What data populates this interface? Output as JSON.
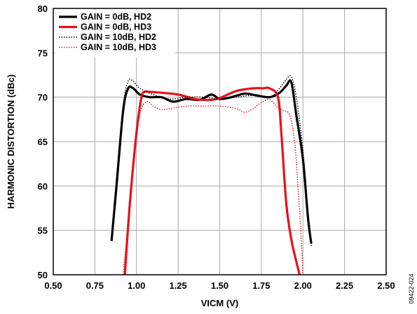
{
  "chart_data": {
    "type": "line",
    "title": "",
    "xlabel": "VICM (V)",
    "ylabel": "HARMONIC DISTORTION (dBc)",
    "xlim": [
      0.5,
      2.5
    ],
    "ylim": [
      50,
      80
    ],
    "x_ticks": [
      "0.50",
      "0.75",
      "1.00",
      "1.25",
      "1.50",
      "1.75",
      "2.00",
      "2.25",
      "2.50"
    ],
    "y_ticks": [
      "50",
      "55",
      "60",
      "65",
      "70",
      "75",
      "80"
    ],
    "grid": true,
    "legend_position": "top-left",
    "figure_id": "09422-024",
    "series": [
      {
        "name": "GAIN = 0dB, HD2",
        "color": "#000000",
        "style": "solid-thick",
        "x": [
          0.85,
          0.88,
          0.92,
          0.95,
          0.98,
          1.02,
          1.08,
          1.15,
          1.22,
          1.3,
          1.38,
          1.45,
          1.5,
          1.57,
          1.65,
          1.72,
          1.8,
          1.86,
          1.9,
          1.93,
          1.96,
          2.0,
          2.03,
          2.05
        ],
        "y": [
          53.8,
          60.0,
          68.5,
          71.0,
          71.0,
          70.3,
          70.0,
          70.0,
          69.5,
          69.8,
          69.7,
          70.3,
          69.8,
          70.0,
          70.4,
          70.2,
          70.0,
          70.5,
          71.3,
          71.7,
          68.0,
          63.0,
          56.5,
          53.5
        ]
      },
      {
        "name": "GAIN = 0dB, HD3",
        "color": "#e8111b",
        "style": "solid-thick",
        "x": [
          0.93,
          0.96,
          1.0,
          1.03,
          1.05,
          1.08,
          1.15,
          1.25,
          1.35,
          1.4,
          1.45,
          1.5,
          1.6,
          1.7,
          1.76,
          1.8,
          1.85,
          1.87,
          1.9,
          1.93,
          1.96,
          1.98
        ],
        "y": [
          50.0,
          58.0,
          66.0,
          70.0,
          70.6,
          70.6,
          70.5,
          70.3,
          69.8,
          69.7,
          69.7,
          69.9,
          70.7,
          71.0,
          71.0,
          71.0,
          70.0,
          66.0,
          58.0,
          54.0,
          51.5,
          50.0
        ]
      },
      {
        "name": "GAIN = 10dB, HD2",
        "color": "#000000",
        "style": "dotted",
        "x": [
          0.85,
          0.88,
          0.92,
          0.95,
          0.98,
          1.02,
          1.1,
          1.2,
          1.3,
          1.4,
          1.5,
          1.6,
          1.7,
          1.8,
          1.86,
          1.9,
          1.93,
          1.96,
          2.0,
          2.03,
          2.05
        ],
        "y": [
          54.2,
          61.0,
          69.0,
          71.8,
          71.8,
          71.0,
          70.3,
          69.8,
          70.0,
          70.0,
          69.8,
          70.0,
          70.2,
          70.0,
          71.0,
          72.0,
          72.3,
          70.0,
          64.0,
          57.0,
          53.2
        ]
      },
      {
        "name": "GAIN = 10dB, HD3",
        "color": "#e8111b",
        "style": "dotted",
        "x": [
          0.92,
          0.95,
          0.98,
          1.02,
          1.06,
          1.1,
          1.15,
          1.2,
          1.3,
          1.4,
          1.5,
          1.6,
          1.65,
          1.7,
          1.75,
          1.8,
          1.85,
          1.88,
          1.92,
          1.95,
          1.97,
          1.99,
          2.0
        ],
        "y": [
          50.0,
          56.0,
          62.0,
          68.0,
          69.5,
          69.0,
          68.6,
          68.7,
          69.0,
          69.0,
          69.0,
          68.7,
          68.3,
          68.7,
          69.4,
          69.7,
          68.8,
          68.5,
          68.0,
          65.0,
          60.0,
          54.0,
          50.0
        ]
      }
    ]
  }
}
